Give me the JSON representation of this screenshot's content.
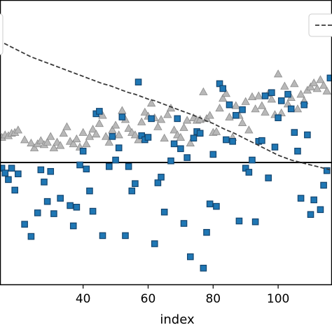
{
  "chart_data": {
    "type": "scatter",
    "title": "",
    "xlabel": "index",
    "ylabel": "",
    "xlim": [
      14,
      117
    ],
    "ylim": [
      -1.5,
      2.0
    ],
    "grid": false,
    "legend_placement": "top-right",
    "x_ticks": [
      {
        "value": 40,
        "label": "40"
      },
      {
        "value": 60,
        "label": "60"
      },
      {
        "value": 80,
        "label": "80"
      },
      {
        "value": 100,
        "label": "100"
      }
    ],
    "reference_line": {
      "y": 0.0,
      "color": "#000000"
    },
    "series": [
      {
        "marker": "triangle",
        "color": "#b8b8b8",
        "edge_color": "#8c8c8c",
        "points": [
          [
            15,
            0.31
          ],
          [
            16,
            0.34
          ],
          [
            17,
            0.33
          ],
          [
            18,
            0.36
          ],
          [
            19,
            0.37
          ],
          [
            20,
            0.4
          ],
          [
            22,
            0.28
          ],
          [
            24,
            0.24
          ],
          [
            25,
            0.18
          ],
          [
            26,
            0.23
          ],
          [
            27,
            0.27
          ],
          [
            28,
            0.22
          ],
          [
            29,
            0.25
          ],
          [
            30,
            0.32
          ],
          [
            31,
            0.18
          ],
          [
            32,
            0.25
          ],
          [
            33,
            0.21
          ],
          [
            34,
            0.36
          ],
          [
            35,
            0.44
          ],
          [
            36,
            0.26
          ],
          [
            37,
            0.23
          ],
          [
            38,
            0.29
          ],
          [
            39,
            0.19
          ],
          [
            40,
            0.37
          ],
          [
            41,
            0.23
          ],
          [
            42,
            0.32
          ],
          [
            43,
            0.41
          ],
          [
            44,
            0.35
          ],
          [
            45,
            0.48
          ],
          [
            46,
            0.58
          ],
          [
            47,
            0.32
          ],
          [
            48,
            0.25
          ],
          [
            49,
            0.4
          ],
          [
            50,
            0.46
          ],
          [
            51,
            0.34
          ],
          [
            52,
            0.64
          ],
          [
            53,
            0.53
          ],
          [
            54,
            0.42
          ],
          [
            55,
            0.37
          ],
          [
            56,
            0.34
          ],
          [
            57,
            0.28
          ],
          [
            58,
            0.5
          ],
          [
            59,
            0.62
          ],
          [
            60,
            0.57
          ],
          [
            61,
            0.73
          ],
          [
            62,
            0.55
          ],
          [
            63,
            0.44
          ],
          [
            64,
            0.53
          ],
          [
            65,
            0.3
          ],
          [
            66,
            0.59
          ],
          [
            67,
            0.67
          ],
          [
            68,
            0.4
          ],
          [
            69,
            0.34
          ],
          [
            70,
            0.31
          ],
          [
            71,
            0.43
          ],
          [
            72,
            0.52
          ],
          [
            73,
            0.24
          ],
          [
            74,
            0.55
          ],
          [
            75,
            0.52
          ],
          [
            76,
            0.53
          ],
          [
            77,
            0.87
          ],
          [
            78,
            0.54
          ],
          [
            79,
            0.58
          ],
          [
            80,
            0.37
          ],
          [
            81,
            0.38
          ],
          [
            82,
            0.67
          ],
          [
            83,
            0.79
          ],
          [
            84,
            0.85
          ],
          [
            85,
            0.56
          ],
          [
            86,
            0.31
          ],
          [
            87,
            0.7
          ],
          [
            88,
            0.58
          ],
          [
            89,
            0.49
          ],
          [
            90,
            0.75
          ],
          [
            91,
            0.4
          ],
          [
            92,
            0.81
          ],
          [
            93,
            0.66
          ],
          [
            94,
            0.82
          ],
          [
            95,
            0.7
          ],
          [
            96,
            0.62
          ],
          [
            97,
            0.85
          ],
          [
            98,
            0.78
          ],
          [
            99,
            0.59
          ],
          [
            100,
            1.09
          ],
          [
            101,
            0.61
          ],
          [
            102,
            0.94
          ],
          [
            103,
            0.72
          ],
          [
            104,
            0.8
          ],
          [
            105,
            0.97
          ],
          [
            106,
            0.66
          ],
          [
            107,
            0.84
          ],
          [
            108,
            0.76
          ],
          [
            109,
            0.89
          ],
          [
            110,
            0.93
          ],
          [
            111,
            0.98
          ],
          [
            112,
            0.91
          ],
          [
            113,
            1.02
          ],
          [
            114,
            0.95
          ],
          [
            115,
            0.88
          ]
        ]
      },
      {
        "marker": "square",
        "color": "#1f77b4",
        "edge_color": "#14456f",
        "points": [
          [
            15,
            -0.07
          ],
          [
            16,
            -0.13
          ],
          [
            17,
            -0.21
          ],
          [
            18,
            -0.07
          ],
          [
            19,
            -0.34
          ],
          [
            20,
            -0.14
          ],
          [
            22,
            -0.76
          ],
          [
            24,
            -0.91
          ],
          [
            26,
            -0.62
          ],
          [
            27,
            -0.09
          ],
          [
            28,
            -0.24
          ],
          [
            29,
            -0.48
          ],
          [
            30,
            -0.11
          ],
          [
            31,
            -0.63
          ],
          [
            33,
            -0.44
          ],
          [
            36,
            -0.53
          ],
          [
            37,
            -0.78
          ],
          [
            38,
            -0.55
          ],
          [
            39,
            -0.03
          ],
          [
            40,
            0.14
          ],
          [
            41,
            -0.08
          ],
          [
            42,
            -0.35
          ],
          [
            43,
            -0.6
          ],
          [
            44,
            0.6
          ],
          [
            45,
            0.63
          ],
          [
            46,
            -0.9
          ],
          [
            48,
            -0.05
          ],
          [
            49,
            0.32
          ],
          [
            50,
            0.03
          ],
          [
            51,
            0.18
          ],
          [
            52,
            0.56
          ],
          [
            53,
            -0.9
          ],
          [
            54,
            -0.05
          ],
          [
            55,
            -0.35
          ],
          [
            56,
            -0.26
          ],
          [
            57,
            0.99
          ],
          [
            58,
            0.33
          ],
          [
            59,
            0.28
          ],
          [
            60,
            0.31
          ],
          [
            61,
            0.54
          ],
          [
            62,
            -1.0
          ],
          [
            63,
            -0.25
          ],
          [
            64,
            -0.18
          ],
          [
            65,
            -0.61
          ],
          [
            67,
            0.02
          ],
          [
            68,
            0.23
          ],
          [
            69,
            0.54
          ],
          [
            70,
            0.17
          ],
          [
            71,
            -0.75
          ],
          [
            72,
            0.06
          ],
          [
            73,
            -1.16
          ],
          [
            74,
            0.3
          ],
          [
            75,
            0.38
          ],
          [
            76,
            0.36
          ],
          [
            77,
            -1.3
          ],
          [
            78,
            -0.86
          ],
          [
            79,
            -0.51
          ],
          [
            80,
            0.1
          ],
          [
            81,
            -0.54
          ],
          [
            82,
            0.97
          ],
          [
            83,
            0.91
          ],
          [
            84,
            0.28
          ],
          [
            85,
            0.71
          ],
          [
            86,
            0.26
          ],
          [
            87,
            0.58
          ],
          [
            88,
            -0.72
          ],
          [
            89,
            0.65
          ],
          [
            90,
            -0.07
          ],
          [
            91,
            -0.12
          ],
          [
            92,
            0.03
          ],
          [
            93,
            -0.73
          ],
          [
            94,
            0.26
          ],
          [
            95,
            0.27
          ],
          [
            96,
            0.82
          ],
          [
            97,
            -0.19
          ],
          [
            98,
            0.86
          ],
          [
            99,
            0.19
          ],
          [
            100,
            0.55
          ],
          [
            101,
            0.76
          ],
          [
            103,
            0.84
          ],
          [
            104,
            0.66
          ],
          [
            105,
            0.37
          ],
          [
            106,
            0.14
          ],
          [
            107,
            -0.44
          ],
          [
            108,
            0.71
          ],
          [
            109,
            0.34
          ],
          [
            110,
            -0.64
          ],
          [
            111,
            -0.46
          ],
          [
            113,
            -0.58
          ],
          [
            114,
            -0.28
          ],
          [
            115,
            -0.1
          ],
          [
            116,
            1.04
          ]
        ]
      },
      {
        "marker": "dashed-line",
        "color": "#3a3a3a",
        "points": [
          [
            14,
            1.5
          ],
          [
            16,
            1.46
          ],
          [
            18,
            1.42
          ],
          [
            20,
            1.38
          ],
          [
            22,
            1.34
          ],
          [
            24,
            1.3
          ],
          [
            26,
            1.27
          ],
          [
            28,
            1.24
          ],
          [
            30,
            1.21
          ],
          [
            32,
            1.18
          ],
          [
            34,
            1.15
          ],
          [
            36,
            1.12
          ],
          [
            38,
            1.09
          ],
          [
            40,
            1.06
          ],
          [
            42,
            1.03
          ],
          [
            44,
            1.0
          ],
          [
            46,
            0.97
          ],
          [
            48,
            0.95
          ],
          [
            50,
            0.92
          ],
          [
            52,
            0.89
          ],
          [
            54,
            0.86
          ],
          [
            56,
            0.84
          ],
          [
            58,
            0.81
          ],
          [
            60,
            0.78
          ],
          [
            62,
            0.76
          ],
          [
            64,
            0.73
          ],
          [
            66,
            0.7
          ],
          [
            68,
            0.67
          ],
          [
            70,
            0.64
          ],
          [
            72,
            0.61
          ],
          [
            74,
            0.58
          ],
          [
            76,
            0.55
          ],
          [
            78,
            0.51
          ],
          [
            80,
            0.48
          ],
          [
            82,
            0.44
          ],
          [
            84,
            0.4
          ],
          [
            86,
            0.37
          ],
          [
            88,
            0.33
          ],
          [
            90,
            0.29
          ],
          [
            92,
            0.25
          ],
          [
            94,
            0.21
          ],
          [
            96,
            0.17
          ],
          [
            98,
            0.13
          ],
          [
            100,
            0.09
          ],
          [
            102,
            0.06
          ],
          [
            104,
            0.03
          ],
          [
            106,
            0.01
          ],
          [
            108,
            -0.01
          ],
          [
            110,
            -0.03
          ],
          [
            112,
            -0.05
          ],
          [
            114,
            -0.07
          ],
          [
            116,
            -0.09
          ]
        ]
      }
    ]
  }
}
